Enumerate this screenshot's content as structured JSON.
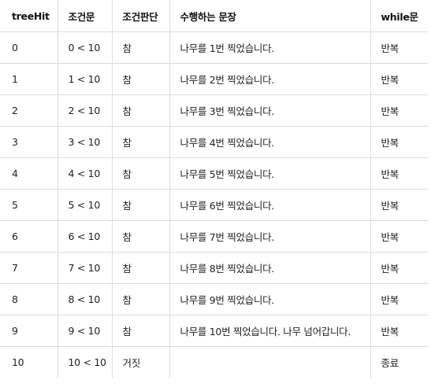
{
  "table": {
    "headers": [
      "treeHit",
      "조건문",
      "조건판단",
      "수행하는 문장",
      "while문"
    ],
    "rows": [
      [
        "0",
        "0 < 10",
        "참",
        "나무를 1번 찍었습니다.",
        "반복"
      ],
      [
        "1",
        "1 < 10",
        "참",
        "나무를 2번 찍었습니다.",
        "반복"
      ],
      [
        "2",
        "2 < 10",
        "참",
        "나무를 3번 찍었습니다.",
        "반복"
      ],
      [
        "3",
        "3 < 10",
        "참",
        "나무를 4번 찍었습니다.",
        "반복"
      ],
      [
        "4",
        "4 < 10",
        "참",
        "나무를 5번 찍었습니다.",
        "반복"
      ],
      [
        "5",
        "5 < 10",
        "참",
        "나무를 6번 찍었습니다.",
        "반복"
      ],
      [
        "6",
        "6 < 10",
        "참",
        "나무를 7번 찍었습니다.",
        "반복"
      ],
      [
        "7",
        "7 < 10",
        "참",
        "나무를 8번 찍었습니다.",
        "반복"
      ],
      [
        "8",
        "8 < 10",
        "참",
        "나무를 9번 찍었습니다.",
        "반복"
      ],
      [
        "9",
        "9 < 10",
        "참",
        "나무를 10번 찍었습니다. 나무 넘어갑니다.",
        "반복"
      ],
      [
        "10",
        "10 < 10",
        "거짓",
        "",
        "종료"
      ]
    ]
  }
}
